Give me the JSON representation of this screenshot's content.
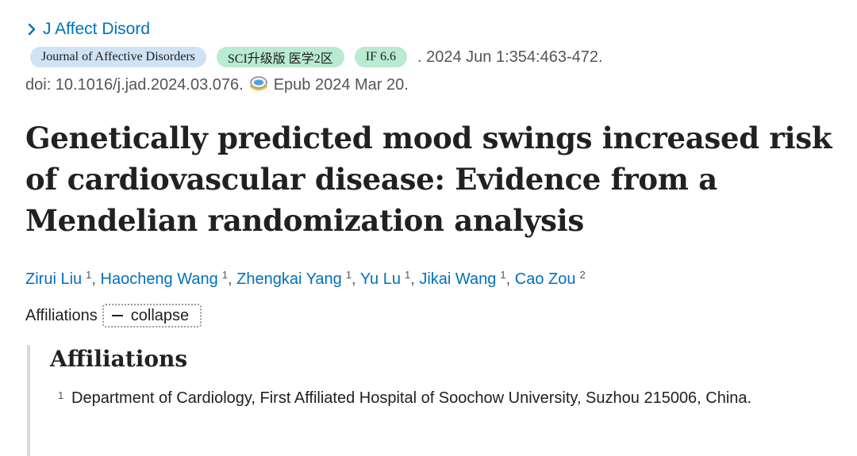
{
  "journal": {
    "abbrev": "J Affect Disord",
    "full_name": "Journal of Affective Disorders",
    "sci_badge": "SCI升级版 医学2区",
    "if_badge": "IF 6.6",
    "citation": ". 2024 Jun 1:354:463-472.",
    "doi": "doi: 10.1016/j.jad.2024.03.076.",
    "epub": "Epub 2024 Mar 20."
  },
  "article": {
    "title": "Genetically predicted mood swings increased risk of cardiovascular disease: Evidence from a Mendelian randomization analysis"
  },
  "authors": [
    {
      "name": "Zirui Liu",
      "aff": "1"
    },
    {
      "name": "Haocheng Wang",
      "aff": "1"
    },
    {
      "name": "Zhengkai Yang",
      "aff": "1"
    },
    {
      "name": "Yu Lu",
      "aff": "1"
    },
    {
      "name": "Jikai Wang",
      "aff": "1"
    },
    {
      "name": "Cao Zou",
      "aff": "2"
    }
  ],
  "affiliations": {
    "label": "Affiliations",
    "toggle_label": "collapse",
    "heading": "Affiliations",
    "items": [
      {
        "num": "1",
        "text": "Department of Cardiology, First Affiliated Hospital of Soochow University, Suzhou 215006, China."
      }
    ]
  },
  "colors": {
    "link": "#0071bc",
    "badge_journal": "#cfe3f5",
    "badge_green": "#b9ead2"
  }
}
